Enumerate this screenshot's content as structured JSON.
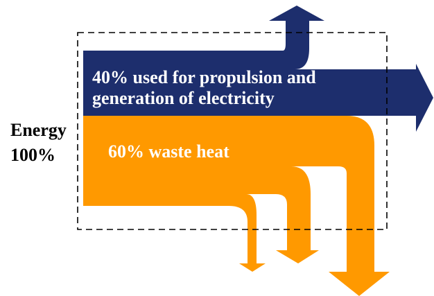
{
  "colors": {
    "propulsion": "#1d2e6d",
    "waste_heat": "#ff9900",
    "boundary": "#000000",
    "text_dark": "#000000",
    "text_light": "#ffffff"
  },
  "labels": {
    "energy_input": "Energy 100%",
    "propulsion": "40% used for propulsion and generation of electricity",
    "waste_heat": "60% waste heat"
  }
}
